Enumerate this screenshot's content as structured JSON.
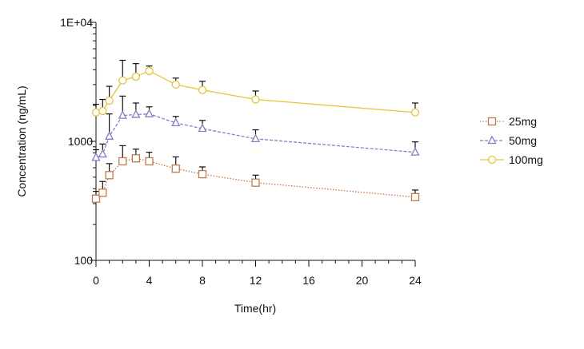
{
  "chart_data": {
    "type": "line",
    "title": "",
    "xlabel": "Time(hr)",
    "ylabel": "Concentration (ng/mL)",
    "xlim": [
      0,
      24
    ],
    "ylim": [
      100,
      10000
    ],
    "y_scale": "log",
    "x_ticks": [
      0,
      4,
      8,
      12,
      16,
      20,
      24
    ],
    "x_tick_labels": [
      "0",
      "4",
      "8",
      "12",
      "16",
      "20",
      "24"
    ],
    "y_ticks": [
      100,
      1000,
      10000
    ],
    "y_tick_labels": [
      "100",
      "1000",
      "1E+04"
    ],
    "grid": false,
    "legend_position": "right",
    "x": [
      0,
      0.5,
      1,
      2,
      3,
      4,
      6,
      8,
      12,
      24
    ],
    "series": [
      {
        "name": "25mg",
        "color": "#c07a4e",
        "marker": "square",
        "line_style": "dotted",
        "values": [
          330,
          370,
          520,
          680,
          720,
          680,
          590,
          530,
          450,
          340
        ],
        "error_upper": [
          380,
          460,
          650,
          920,
          860,
          810,
          740,
          610,
          520,
          390
        ]
      },
      {
        "name": "50mg",
        "color": "#8c7bc2",
        "marker": "triangle",
        "line_style": "dashed",
        "values": [
          730,
          780,
          1100,
          1650,
          1680,
          1700,
          1430,
          1280,
          1050,
          810
        ],
        "error_upper": [
          850,
          950,
          1700,
          2400,
          2100,
          1950,
          1620,
          1500,
          1250,
          990
        ]
      },
      {
        "name": "100mg",
        "color": "#e8c43a",
        "marker": "circle",
        "line_style": "solid",
        "values": [
          1750,
          1800,
          2200,
          3250,
          3500,
          3900,
          3000,
          2700,
          2250,
          1750
        ],
        "error_upper": [
          2050,
          2250,
          2900,
          4800,
          4500,
          4300,
          3400,
          3200,
          2650,
          2100
        ]
      }
    ]
  }
}
